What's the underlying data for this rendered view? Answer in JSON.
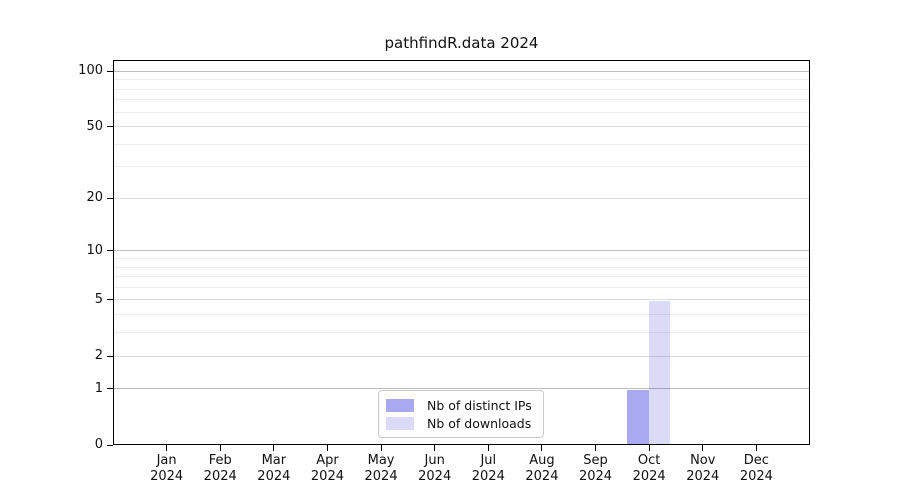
{
  "chart_data": {
    "type": "bar",
    "title": "pathfindR.data 2024",
    "x_year_label": "2024",
    "categories": [
      "Jan",
      "Feb",
      "Mar",
      "Apr",
      "May",
      "Jun",
      "Jul",
      "Aug",
      "Sep",
      "Oct",
      "Nov",
      "Dec"
    ],
    "series": [
      {
        "name": "Nb of distinct IPs",
        "color": "#a9a9f1",
        "values": [
          0,
          0,
          0,
          0,
          0,
          0,
          0,
          0,
          0,
          1,
          0,
          0
        ]
      },
      {
        "name": "Nb of downloads",
        "color": "#dbdbf8",
        "values": [
          0,
          0,
          0,
          0,
          0,
          0,
          0,
          0,
          0,
          5,
          0,
          0
        ]
      }
    ],
    "y_axis": {
      "scale": "log1p",
      "ticks": [
        0,
        1,
        2,
        5,
        10,
        20,
        50,
        100
      ],
      "minor_ticks": [
        3,
        4,
        6,
        7,
        8,
        9,
        30,
        40,
        60,
        70,
        80,
        90
      ],
      "max": 115
    },
    "grid": {
      "strong_lines": [
        1,
        10,
        100
      ],
      "strong_color": "rgba(0,0,0,0.26)",
      "major_color": "rgba(0,0,0,0.14)",
      "minor_color": "rgba(0,0,0,0.07)"
    },
    "legend_position": "bottom-center-inside"
  }
}
